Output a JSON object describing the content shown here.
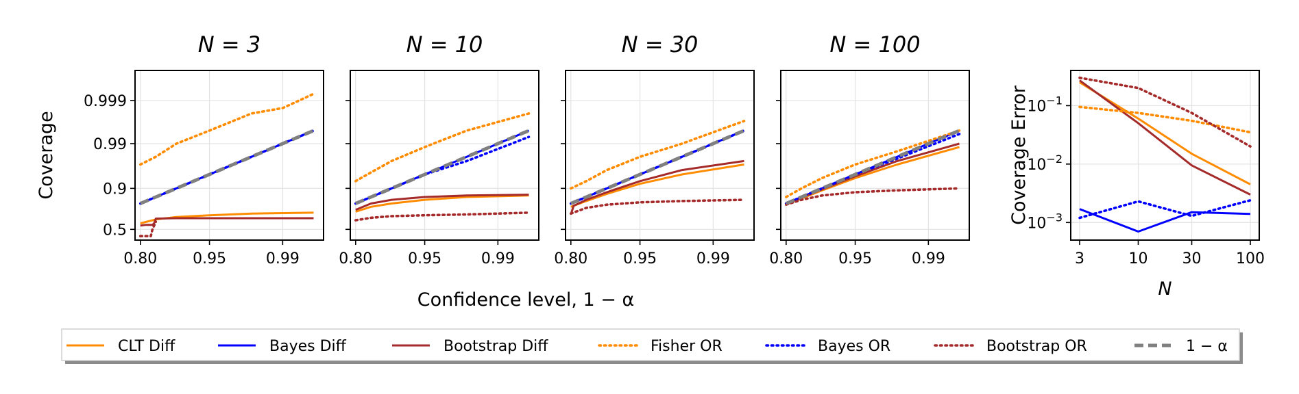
{
  "figure": {
    "ylabel_left": "Coverage",
    "xlabel_shared": "Confidence level, 1 − α"
  },
  "chart_data": [
    {
      "type": "line",
      "title": "N = 3",
      "xlabel": "Confidence level, 1 − α",
      "ylabel": "Coverage",
      "x_scale": "logit",
      "y_scale": "logit",
      "xticks": [
        "0.80",
        "0.95",
        "0.99"
      ],
      "xtick_values": [
        0.8,
        0.95,
        0.99
      ],
      "yticks": [
        "0.5",
        "0.9",
        "0.99",
        "0.999"
      ],
      "ytick_values": [
        0.5,
        0.9,
        0.99,
        0.999
      ],
      "xlim": [
        0.78,
        0.996
      ],
      "ylim": [
        0.36,
        0.9998
      ],
      "grid": true,
      "series": [
        {
          "name": "CLT Diff",
          "color": "#ff8c00",
          "style": "solid",
          "x": [
            0.8,
            0.85,
            0.9,
            0.95,
            0.98,
            0.995
          ],
          "y": [
            0.58,
            0.63,
            0.66,
            0.68,
            0.7,
            0.71
          ]
        },
        {
          "name": "Bayes Diff",
          "color": "#0000ff",
          "style": "solid",
          "x": [
            0.8,
            0.85,
            0.9,
            0.95,
            0.98,
            0.995
          ],
          "y": [
            0.8,
            0.85,
            0.9,
            0.95,
            0.98,
            0.995
          ]
        },
        {
          "name": "Bootstrap Diff",
          "color": "#a52a2a",
          "style": "solid",
          "x": [
            0.8,
            0.82,
            0.84,
            0.845,
            0.85,
            0.9,
            0.95,
            0.98,
            0.995
          ],
          "y": [
            0.55,
            0.56,
            0.56,
            0.58,
            0.64,
            0.645,
            0.645,
            0.645,
            0.645
          ]
        },
        {
          "name": "Fisher OR",
          "color": "#ff8c00",
          "style": "dotted",
          "x": [
            0.8,
            0.85,
            0.9,
            0.95,
            0.98,
            0.99,
            0.995
          ],
          "y": [
            0.97,
            0.98,
            0.99,
            0.995,
            0.998,
            0.9985,
            0.9993
          ]
        },
        {
          "name": "Bayes OR",
          "color": "#0000ff",
          "style": "dotted",
          "x": [
            0.8,
            0.85,
            0.9,
            0.95,
            0.98,
            0.995
          ],
          "y": [
            0.8,
            0.85,
            0.9,
            0.95,
            0.98,
            0.995
          ]
        },
        {
          "name": "Bootstrap OR",
          "color": "#a52a2a",
          "style": "dotted",
          "x": [
            0.8,
            0.82,
            0.835,
            0.84,
            0.85
          ],
          "y": [
            0.41,
            0.41,
            0.41,
            0.5,
            0.6
          ]
        },
        {
          "name": "1 − α",
          "color": "#808080",
          "style": "dashed",
          "x": [
            0.8,
            0.85,
            0.9,
            0.95,
            0.98,
            0.995
          ],
          "y": [
            0.8,
            0.85,
            0.9,
            0.95,
            0.98,
            0.995
          ]
        }
      ]
    },
    {
      "type": "line",
      "title": "N = 10",
      "x_scale": "logit",
      "y_scale": "logit",
      "xticks": [
        "0.80",
        "0.95",
        "0.99"
      ],
      "xtick_values": [
        0.8,
        0.95,
        0.99
      ],
      "ytick_values": [
        0.5,
        0.9,
        0.99,
        0.999
      ],
      "xlim": [
        0.78,
        0.996
      ],
      "ylim": [
        0.36,
        0.9998
      ],
      "grid": true,
      "series": [
        {
          "name": "CLT Diff",
          "color": "#ff8c00",
          "style": "solid",
          "x": [
            0.8,
            0.85,
            0.9,
            0.95,
            0.98,
            0.995
          ],
          "y": [
            0.72,
            0.77,
            0.8,
            0.83,
            0.85,
            0.86
          ]
        },
        {
          "name": "Bayes Diff",
          "color": "#0000ff",
          "style": "solid",
          "x": [
            0.8,
            0.85,
            0.9,
            0.95,
            0.98,
            0.995
          ],
          "y": [
            0.8,
            0.85,
            0.9,
            0.95,
            0.98,
            0.995
          ]
        },
        {
          "name": "Bootstrap Diff",
          "color": "#a52a2a",
          "style": "solid",
          "x": [
            0.8,
            0.85,
            0.9,
            0.95,
            0.98,
            0.995
          ],
          "y": [
            0.74,
            0.8,
            0.83,
            0.85,
            0.86,
            0.865
          ]
        },
        {
          "name": "Fisher OR",
          "color": "#ff8c00",
          "style": "dotted",
          "x": [
            0.8,
            0.85,
            0.9,
            0.95,
            0.98,
            0.995
          ],
          "y": [
            0.93,
            0.955,
            0.975,
            0.988,
            0.995,
            0.998
          ]
        },
        {
          "name": "Bayes OR",
          "color": "#0000ff",
          "style": "dotted",
          "x": [
            0.8,
            0.85,
            0.9,
            0.95,
            0.98,
            0.995
          ],
          "y": [
            0.8,
            0.85,
            0.9,
            0.95,
            0.975,
            0.993
          ]
        },
        {
          "name": "Bootstrap OR",
          "color": "#a52a2a",
          "style": "dotted",
          "x": [
            0.8,
            0.85,
            0.9,
            0.95,
            0.98,
            0.995
          ],
          "y": [
            0.62,
            0.65,
            0.67,
            0.68,
            0.69,
            0.71
          ]
        },
        {
          "name": "1 − α",
          "color": "#808080",
          "style": "dashed",
          "x": [
            0.8,
            0.85,
            0.9,
            0.95,
            0.98,
            0.995
          ],
          "y": [
            0.8,
            0.85,
            0.9,
            0.95,
            0.98,
            0.995
          ]
        }
      ]
    },
    {
      "type": "line",
      "title": "N = 30",
      "x_scale": "logit",
      "y_scale": "logit",
      "xticks": [
        "0.80",
        "0.95",
        "0.99"
      ],
      "xtick_values": [
        0.8,
        0.95,
        0.99
      ],
      "ytick_values": [
        0.5,
        0.9,
        0.99,
        0.999
      ],
      "xlim": [
        0.78,
        0.996
      ],
      "ylim": [
        0.36,
        0.9998
      ],
      "grid": true,
      "series": [
        {
          "name": "CLT Diff",
          "color": "#ff8c00",
          "style": "solid",
          "x": [
            0.8,
            0.85,
            0.9,
            0.95,
            0.98,
            0.995
          ],
          "y": [
            0.77,
            0.82,
            0.87,
            0.92,
            0.95,
            0.97
          ]
        },
        {
          "name": "Bayes Diff",
          "color": "#0000ff",
          "style": "solid",
          "x": [
            0.8,
            0.85,
            0.9,
            0.95,
            0.98,
            0.995
          ],
          "y": [
            0.8,
            0.85,
            0.9,
            0.95,
            0.98,
            0.995
          ]
        },
        {
          "name": "Bootstrap Diff",
          "color": "#a52a2a",
          "style": "solid",
          "x": [
            0.8,
            0.81,
            0.85,
            0.9,
            0.95,
            0.98,
            0.995
          ],
          "y": [
            0.69,
            0.78,
            0.83,
            0.88,
            0.93,
            0.96,
            0.975
          ]
        },
        {
          "name": "Fisher OR",
          "color": "#ff8c00",
          "style": "dotted",
          "x": [
            0.8,
            0.85,
            0.9,
            0.95,
            0.98,
            0.995
          ],
          "y": [
            0.9,
            0.93,
            0.96,
            0.98,
            0.99,
            0.997
          ]
        },
        {
          "name": "Bayes OR",
          "color": "#0000ff",
          "style": "dotted",
          "x": [
            0.8,
            0.85,
            0.9,
            0.95,
            0.98,
            0.995
          ],
          "y": [
            0.8,
            0.85,
            0.9,
            0.95,
            0.98,
            0.995
          ]
        },
        {
          "name": "Bootstrap OR",
          "color": "#a52a2a",
          "style": "dotted",
          "x": [
            0.8,
            0.85,
            0.9,
            0.95,
            0.98,
            0.995
          ],
          "y": [
            0.7,
            0.76,
            0.79,
            0.81,
            0.82,
            0.83
          ]
        },
        {
          "name": "1 − α",
          "color": "#808080",
          "style": "dashed",
          "x": [
            0.8,
            0.85,
            0.9,
            0.95,
            0.98,
            0.995
          ],
          "y": [
            0.8,
            0.85,
            0.9,
            0.95,
            0.98,
            0.995
          ]
        }
      ]
    },
    {
      "type": "line",
      "title": "N = 100",
      "x_scale": "logit",
      "y_scale": "logit",
      "xticks": [
        "0.80",
        "0.95",
        "0.99"
      ],
      "xtick_values": [
        0.8,
        0.95,
        0.99
      ],
      "ytick_values": [
        0.5,
        0.9,
        0.99,
        0.999
      ],
      "xlim": [
        0.78,
        0.996
      ],
      "ylim": [
        0.36,
        0.9998
      ],
      "grid": true,
      "series": [
        {
          "name": "CLT Diff",
          "color": "#ff8c00",
          "style": "solid",
          "x": [
            0.8,
            0.85,
            0.9,
            0.95,
            0.98,
            0.995
          ],
          "y": [
            0.79,
            0.84,
            0.89,
            0.94,
            0.97,
            0.988
          ]
        },
        {
          "name": "Bayes Diff",
          "color": "#0000ff",
          "style": "solid",
          "x": [
            0.8,
            0.85,
            0.9,
            0.95,
            0.98,
            0.995
          ],
          "y": [
            0.8,
            0.85,
            0.9,
            0.95,
            0.98,
            0.995
          ]
        },
        {
          "name": "Bootstrap Diff",
          "color": "#a52a2a",
          "style": "solid",
          "x": [
            0.8,
            0.85,
            0.9,
            0.95,
            0.98,
            0.995
          ],
          "y": [
            0.795,
            0.845,
            0.895,
            0.945,
            0.975,
            0.99
          ]
        },
        {
          "name": "Fisher OR",
          "color": "#ff8c00",
          "style": "dotted",
          "x": [
            0.8,
            0.85,
            0.9,
            0.95,
            0.98,
            0.995
          ],
          "y": [
            0.85,
            0.9,
            0.94,
            0.97,
            0.985,
            0.995
          ]
        },
        {
          "name": "Bayes OR",
          "color": "#0000ff",
          "style": "dotted",
          "x": [
            0.8,
            0.85,
            0.9,
            0.95,
            0.98,
            0.995
          ],
          "y": [
            0.8,
            0.85,
            0.9,
            0.95,
            0.978,
            0.994
          ]
        },
        {
          "name": "Bootstrap OR",
          "color": "#a52a2a",
          "style": "dotted",
          "x": [
            0.8,
            0.85,
            0.9,
            0.95,
            0.98,
            0.995
          ],
          "y": [
            0.79,
            0.83,
            0.86,
            0.88,
            0.89,
            0.9
          ]
        },
        {
          "name": "1 − α",
          "color": "#808080",
          "style": "dashed",
          "x": [
            0.8,
            0.85,
            0.9,
            0.95,
            0.98,
            0.995
          ],
          "y": [
            0.8,
            0.85,
            0.9,
            0.95,
            0.98,
            0.995
          ]
        }
      ]
    },
    {
      "type": "line",
      "xlabel": "N",
      "ylabel": "Coverage Error",
      "x_scale": "log",
      "y_scale": "log",
      "xticks": [
        "3",
        "10",
        "30",
        "100"
      ],
      "xtick_values": [
        3,
        10,
        30,
        100
      ],
      "yticks": [
        "10−1",
        "10−2",
        "10−3"
      ],
      "ytick_values": [
        0.1,
        0.01,
        0.001
      ],
      "xlim": [
        2.5,
        120
      ],
      "ylim": [
        0.0005,
        0.4
      ],
      "grid": true,
      "series": [
        {
          "name": "CLT Diff",
          "color": "#ff8c00",
          "style": "solid",
          "x": [
            3,
            10,
            30,
            100
          ],
          "y": [
            0.25,
            0.06,
            0.015,
            0.0045
          ]
        },
        {
          "name": "Bayes Diff",
          "color": "#0000ff",
          "style": "solid",
          "x": [
            3,
            10,
            30,
            100
          ],
          "y": [
            0.0017,
            0.0007,
            0.0015,
            0.0014
          ]
        },
        {
          "name": "Bootstrap Diff",
          "color": "#a52a2a",
          "style": "solid",
          "x": [
            3,
            10,
            30,
            100
          ],
          "y": [
            0.27,
            0.05,
            0.0095,
            0.003
          ]
        },
        {
          "name": "Fisher OR",
          "color": "#ff8c00",
          "style": "dotted",
          "x": [
            3,
            10,
            30,
            100
          ],
          "y": [
            0.095,
            0.075,
            0.055,
            0.035
          ]
        },
        {
          "name": "Bayes OR",
          "color": "#0000ff",
          "style": "dotted",
          "x": [
            3,
            10,
            30,
            100
          ],
          "y": [
            0.0012,
            0.0023,
            0.0013,
            0.0024
          ]
        },
        {
          "name": "Bootstrap OR",
          "color": "#a52a2a",
          "style": "dotted",
          "x": [
            3,
            10,
            30,
            100
          ],
          "y": [
            0.3,
            0.2,
            0.075,
            0.02
          ]
        }
      ]
    }
  ],
  "legend": {
    "placement": "bottom",
    "entries": [
      {
        "label": "CLT Diff",
        "color": "#ff8c00",
        "style": "solid"
      },
      {
        "label": "Bayes Diff",
        "color": "#0000ff",
        "style": "solid"
      },
      {
        "label": "Bootstrap Diff",
        "color": "#a52a2a",
        "style": "solid"
      },
      {
        "label": "Fisher OR",
        "color": "#ff8c00",
        "style": "dotted"
      },
      {
        "label": "Bayes OR",
        "color": "#0000ff",
        "style": "dotted"
      },
      {
        "label": "Bootstrap OR",
        "color": "#a52a2a",
        "style": "dotted"
      },
      {
        "label": "1 − α",
        "color": "#808080",
        "style": "dashed"
      }
    ]
  }
}
